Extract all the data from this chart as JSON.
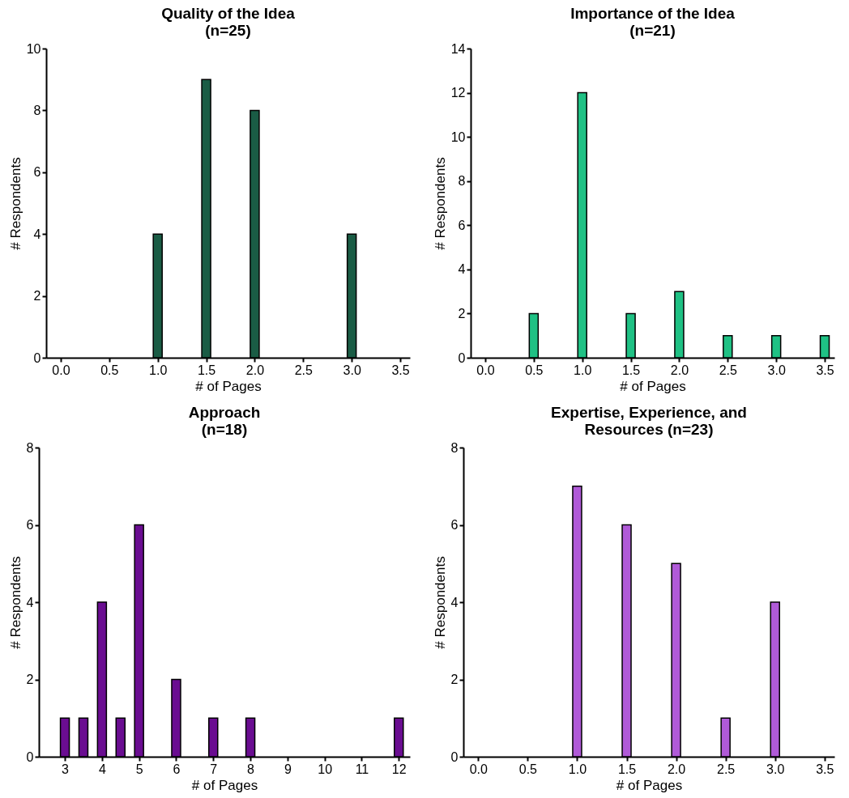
{
  "chart_data": [
    {
      "type": "bar",
      "title": "Quality of the Idea\n(n=25)",
      "xlabel": "# of Pages",
      "ylabel": "# Respondents",
      "x": [
        1,
        1.5,
        2,
        3
      ],
      "series": [
        {
          "color": "#1a5c45",
          "values": [
            4,
            9,
            8,
            4
          ]
        }
      ],
      "xlim": [
        -0.15,
        3.6
      ],
      "xticks": [
        {
          "value": 0,
          "label": "0.0"
        },
        {
          "value": 0.5,
          "label": "0.5"
        },
        {
          "value": 1,
          "label": "1.0"
        },
        {
          "value": 1.5,
          "label": "1.5"
        },
        {
          "value": 2,
          "label": "2.0"
        },
        {
          "value": 2.5,
          "label": "2.5"
        },
        {
          "value": 3,
          "label": "3.0"
        },
        {
          "value": 3.5,
          "label": "3.5"
        }
      ],
      "ylim": [
        0,
        10
      ],
      "yticks": [
        0,
        2,
        4,
        6,
        8,
        10
      ],
      "grid": false,
      "legend": false
    },
    {
      "type": "bar",
      "title": "Importance of the Idea\n(n=21)",
      "xlabel": "# of Pages",
      "ylabel": "# Respondents",
      "x": [
        0.5,
        1,
        1.5,
        2,
        2.5,
        3,
        3.5
      ],
      "series": [
        {
          "color": "#1fc184",
          "values": [
            2,
            12,
            2,
            3,
            1,
            1,
            1
          ]
        }
      ],
      "xlim": [
        -0.15,
        3.6
      ],
      "xticks": [
        {
          "value": 0,
          "label": "0.0"
        },
        {
          "value": 0.5,
          "label": "0.5"
        },
        {
          "value": 1,
          "label": "1.0"
        },
        {
          "value": 1.5,
          "label": "1.5"
        },
        {
          "value": 2,
          "label": "2.0"
        },
        {
          "value": 2.5,
          "label": "2.5"
        },
        {
          "value": 3,
          "label": "3.0"
        },
        {
          "value": 3.5,
          "label": "3.5"
        }
      ],
      "ylim": [
        0,
        14
      ],
      "yticks": [
        0,
        2,
        4,
        6,
        8,
        10,
        12,
        14
      ],
      "grid": false,
      "legend": false
    },
    {
      "type": "bar",
      "title": "Approach\n(n=18)",
      "xlabel": "# of Pages",
      "ylabel": "# Respondents",
      "x": [
        3,
        3.5,
        4,
        4.5,
        5,
        6,
        7,
        8,
        12
      ],
      "series": [
        {
          "color": "#6a0d91",
          "values": [
            1,
            1,
            4,
            1,
            6,
            2,
            1,
            1,
            1
          ]
        }
      ],
      "xlim": [
        2.3,
        12.3
      ],
      "xticks": [
        3,
        4,
        5,
        6,
        7,
        8,
        9,
        10,
        11,
        12
      ],
      "ylim": [
        0,
        8
      ],
      "yticks": [
        0,
        2,
        4,
        6,
        8
      ],
      "grid": false,
      "legend": false
    },
    {
      "type": "bar",
      "title": "Expertise, Experience, and\nResources  (n=23)",
      "xlabel": "# of Pages",
      "ylabel": "# Respondents",
      "x": [
        1,
        1.5,
        2,
        2.5,
        3
      ],
      "series": [
        {
          "color": "#b05ad8",
          "values": [
            7,
            6,
            5,
            1,
            4
          ]
        }
      ],
      "xlim": [
        -0.15,
        3.6
      ],
      "xticks": [
        {
          "value": 0,
          "label": "0.0"
        },
        {
          "value": 0.5,
          "label": "0.5"
        },
        {
          "value": 1,
          "label": "1.0"
        },
        {
          "value": 1.5,
          "label": "1.5"
        },
        {
          "value": 2,
          "label": "2.0"
        },
        {
          "value": 2.5,
          "label": "2.5"
        },
        {
          "value": 3,
          "label": "3.0"
        },
        {
          "value": 3.5,
          "label": "3.5"
        }
      ],
      "ylim": [
        0,
        8
      ],
      "yticks": [
        0,
        2,
        4,
        6,
        8
      ],
      "grid": false,
      "legend": false
    }
  ]
}
